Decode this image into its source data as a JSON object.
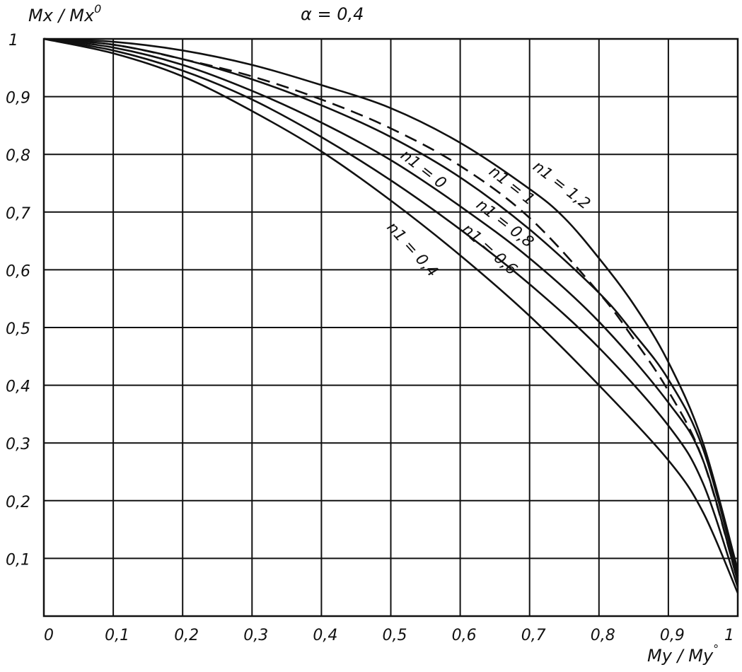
{
  "chart_data": {
    "type": "line",
    "title": "α = 0,4",
    "xlabel": "My / My°",
    "ylabel": "Mx / Mx°",
    "xlim": [
      0,
      1
    ],
    "ylim": [
      0,
      1
    ],
    "grid": true,
    "x_ticks": [
      "0",
      "0,1",
      "0,2",
      "0,3",
      "0,4",
      "0,5",
      "0,6",
      "0,7",
      "0,8",
      "0,9",
      "1"
    ],
    "y_ticks": [
      "1",
      "0,9",
      "0,8",
      "0,7",
      "0,6",
      "0,5",
      "0,4",
      "0,3",
      "0,2",
      "0,1"
    ],
    "series": [
      {
        "name": "n1 = 1,2",
        "style": "solid",
        "x": [
          0,
          0.1,
          0.2,
          0.3,
          0.4,
          0.5,
          0.6,
          0.7,
          0.75,
          0.8,
          0.85,
          0.9,
          0.95,
          1.0
        ],
        "y": [
          1,
          0.995,
          0.98,
          0.955,
          0.92,
          0.88,
          0.82,
          0.74,
          0.69,
          0.62,
          0.54,
          0.44,
          0.3,
          0.08
        ]
      },
      {
        "name": "n1 = 1",
        "style": "solid",
        "x": [
          0,
          0.1,
          0.2,
          0.3,
          0.4,
          0.5,
          0.6,
          0.7,
          0.8,
          0.85,
          0.9,
          0.95,
          1.0
        ],
        "y": [
          1,
          0.99,
          0.965,
          0.93,
          0.885,
          0.83,
          0.76,
          0.67,
          0.56,
          0.49,
          0.41,
          0.29,
          0.07
        ]
      },
      {
        "name": "n1 = 0",
        "style": "dashed",
        "x": [
          0,
          0.1,
          0.2,
          0.3,
          0.4,
          0.5,
          0.6,
          0.7,
          0.8,
          0.85,
          0.9,
          0.95,
          1.0
        ],
        "y": [
          1,
          0.99,
          0.965,
          0.935,
          0.895,
          0.845,
          0.78,
          0.69,
          0.56,
          0.48,
          0.39,
          0.27,
          0.06
        ]
      },
      {
        "name": "n1 = 0,8",
        "style": "solid",
        "x": [
          0,
          0.1,
          0.2,
          0.3,
          0.4,
          0.5,
          0.6,
          0.7,
          0.8,
          0.9,
          0.95,
          1.0
        ],
        "y": [
          1,
          0.985,
          0.955,
          0.91,
          0.855,
          0.79,
          0.71,
          0.62,
          0.51,
          0.37,
          0.27,
          0.06
        ]
      },
      {
        "name": "n1 = 0,6",
        "style": "solid",
        "x": [
          0,
          0.1,
          0.2,
          0.3,
          0.4,
          0.5,
          0.6,
          0.7,
          0.8,
          0.9,
          0.95,
          1.0
        ],
        "y": [
          1,
          0.98,
          0.945,
          0.895,
          0.83,
          0.755,
          0.67,
          0.575,
          0.465,
          0.33,
          0.23,
          0.05
        ]
      },
      {
        "name": "n1 = 0,4",
        "style": "solid",
        "x": [
          0,
          0.1,
          0.2,
          0.3,
          0.4,
          0.5,
          0.6,
          0.7,
          0.8,
          0.9,
          0.95,
          1.0
        ],
        "y": [
          1,
          0.975,
          0.935,
          0.875,
          0.805,
          0.72,
          0.625,
          0.52,
          0.4,
          0.27,
          0.18,
          0.04
        ]
      }
    ]
  },
  "labels": {
    "ylabel_main": "Mx / Mx",
    "ylabel_sup": "0",
    "xlabel_main": "My / My",
    "xlabel_sup": "°",
    "title": "α = 0,4"
  }
}
